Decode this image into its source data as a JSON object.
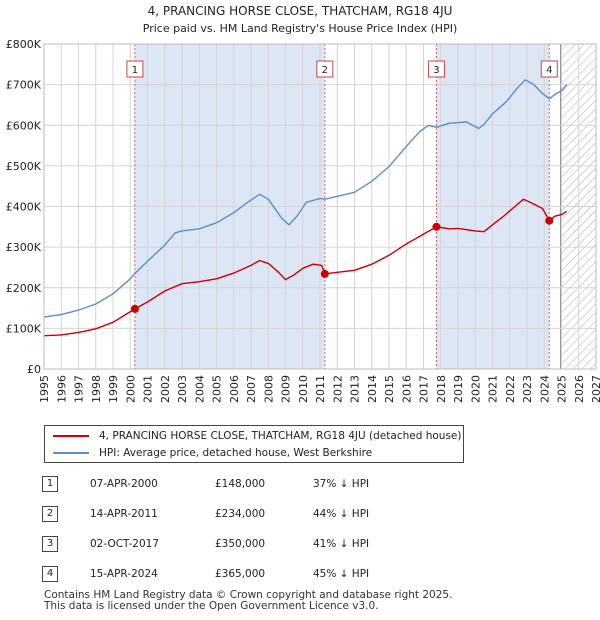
{
  "chart_data": {
    "type": "line",
    "title": "4, PRANCING HORSE CLOSE, THATCHAM, RG18 4JU",
    "subtitle": "Price paid vs. HM Land Registry's House Price Index (HPI)",
    "xlabel": "",
    "ylabel": "",
    "xlim": [
      1995,
      2027
    ],
    "ylim": [
      0,
      800000
    ],
    "x_ticks": [
      "1995",
      "1996",
      "1997",
      "1998",
      "1999",
      "2000",
      "2001",
      "2002",
      "2003",
      "2004",
      "2005",
      "2006",
      "2007",
      "2008",
      "2009",
      "2010",
      "2011",
      "2012",
      "2013",
      "2014",
      "2015",
      "2016",
      "2017",
      "2018",
      "2019",
      "2020",
      "2021",
      "2022",
      "2023",
      "2024",
      "2025",
      "2026",
      "2027"
    ],
    "y_ticks": [
      {
        "value": 0,
        "label": "£0"
      },
      {
        "value": 100000,
        "label": "£100K"
      },
      {
        "value": 200000,
        "label": "£200K"
      },
      {
        "value": 300000,
        "label": "£300K"
      },
      {
        "value": 400000,
        "label": "£400K"
      },
      {
        "value": 500000,
        "label": "£500K"
      },
      {
        "value": 600000,
        "label": "£600K"
      },
      {
        "value": 700000,
        "label": "£700K"
      },
      {
        "value": 800000,
        "label": "£800K"
      }
    ],
    "grid": true,
    "forecast_start": 2024.95,
    "series": [
      {
        "name": "4, PRANCING HORSE CLOSE, THATCHAM, RG18 4JU (detached house)",
        "color": "#cc0000",
        "points": [
          [
            1995.0,
            82000
          ],
          [
            1996.0,
            84000
          ],
          [
            1997.0,
            90000
          ],
          [
            1998.0,
            99000
          ],
          [
            1999.0,
            115000
          ],
          [
            2000.27,
            148000
          ],
          [
            2001.0,
            165000
          ],
          [
            2002.0,
            192000
          ],
          [
            2003.0,
            210000
          ],
          [
            2004.0,
            215000
          ],
          [
            2005.0,
            222000
          ],
          [
            2006.0,
            236000
          ],
          [
            2007.0,
            255000
          ],
          [
            2007.5,
            267000
          ],
          [
            2008.0,
            260000
          ],
          [
            2008.6,
            238000
          ],
          [
            2009.0,
            220000
          ],
          [
            2009.5,
            232000
          ],
          [
            2010.0,
            248000
          ],
          [
            2010.6,
            258000
          ],
          [
            2011.1,
            255000
          ],
          [
            2011.28,
            234000
          ],
          [
            2012.0,
            238000
          ],
          [
            2013.0,
            243000
          ],
          [
            2014.0,
            258000
          ],
          [
            2015.0,
            280000
          ],
          [
            2016.0,
            308000
          ],
          [
            2016.6,
            322000
          ],
          [
            2017.0,
            332000
          ],
          [
            2017.75,
            350000
          ],
          [
            2018.5,
            345000
          ],
          [
            2019.0,
            346000
          ],
          [
            2020.0,
            340000
          ],
          [
            2020.5,
            338000
          ],
          [
            2021.0,
            355000
          ],
          [
            2021.7,
            378000
          ],
          [
            2022.3,
            400000
          ],
          [
            2022.8,
            418000
          ],
          [
            2023.3,
            408000
          ],
          [
            2023.9,
            395000
          ],
          [
            2024.29,
            365000
          ],
          [
            2024.6,
            376000
          ],
          [
            2025.0,
            380000
          ],
          [
            2025.3,
            388000
          ]
        ]
      },
      {
        "name": "HPI: Average price, detached house, West Berkshire",
        "color": "#5b8fc9",
        "points": [
          [
            1995.0,
            128000
          ],
          [
            1996.0,
            134000
          ],
          [
            1997.0,
            145000
          ],
          [
            1998.0,
            160000
          ],
          [
            1999.0,
            185000
          ],
          [
            2000.0,
            222000
          ],
          [
            2000.27,
            235000
          ],
          [
            2001.0,
            265000
          ],
          [
            2002.0,
            305000
          ],
          [
            2002.6,
            335000
          ],
          [
            2003.0,
            340000
          ],
          [
            2004.0,
            345000
          ],
          [
            2005.0,
            360000
          ],
          [
            2006.0,
            385000
          ],
          [
            2006.8,
            410000
          ],
          [
            2007.5,
            430000
          ],
          [
            2008.0,
            418000
          ],
          [
            2008.8,
            370000
          ],
          [
            2009.2,
            355000
          ],
          [
            2009.7,
            378000
          ],
          [
            2010.2,
            410000
          ],
          [
            2011.0,
            420000
          ],
          [
            2011.28,
            418000
          ],
          [
            2012.0,
            425000
          ],
          [
            2013.0,
            435000
          ],
          [
            2014.0,
            462000
          ],
          [
            2015.0,
            498000
          ],
          [
            2016.0,
            548000
          ],
          [
            2016.8,
            585000
          ],
          [
            2017.3,
            600000
          ],
          [
            2017.75,
            595000
          ],
          [
            2018.5,
            605000
          ],
          [
            2019.5,
            608000
          ],
          [
            2020.2,
            592000
          ],
          [
            2020.5,
            602000
          ],
          [
            2021.0,
            628000
          ],
          [
            2021.8,
            658000
          ],
          [
            2022.4,
            690000
          ],
          [
            2022.9,
            712000
          ],
          [
            2023.4,
            700000
          ],
          [
            2023.8,
            682000
          ],
          [
            2024.29,
            665000
          ],
          [
            2024.7,
            678000
          ],
          [
            2025.0,
            685000
          ],
          [
            2025.3,
            700000
          ]
        ]
      }
    ],
    "sale_markers": [
      {
        "label": "1",
        "x": 2000.27,
        "y": 148000
      },
      {
        "label": "2",
        "x": 2011.28,
        "y": 234000
      },
      {
        "label": "3",
        "x": 2017.75,
        "y": 350000
      },
      {
        "label": "4",
        "x": 2024.29,
        "y": 365000
      }
    ]
  },
  "legend": {
    "property_label": "4, PRANCING HORSE CLOSE, THATCHAM, RG18 4JU (detached house)",
    "hpi_label": "HPI: Average price, detached house, West Berkshire"
  },
  "sales": [
    {
      "num": "1",
      "date": "07-APR-2000",
      "price": "£148,000",
      "hpi": "37% ↓ HPI"
    },
    {
      "num": "2",
      "date": "14-APR-2011",
      "price": "£234,000",
      "hpi": "44% ↓ HPI"
    },
    {
      "num": "3",
      "date": "02-OCT-2017",
      "price": "£350,000",
      "hpi": "41% ↓ HPI"
    },
    {
      "num": "4",
      "date": "15-APR-2024",
      "price": "£365,000",
      "hpi": "45% ↓ HPI"
    }
  ],
  "footer": {
    "line1": "Contains HM Land Registry data © Crown copyright and database right 2025.",
    "line2": "This data is licensed under the Open Government Licence v3.0."
  },
  "colors": {
    "property": "#cc0000",
    "hpi": "#5b8fc9",
    "shade": "#dde6f5"
  }
}
